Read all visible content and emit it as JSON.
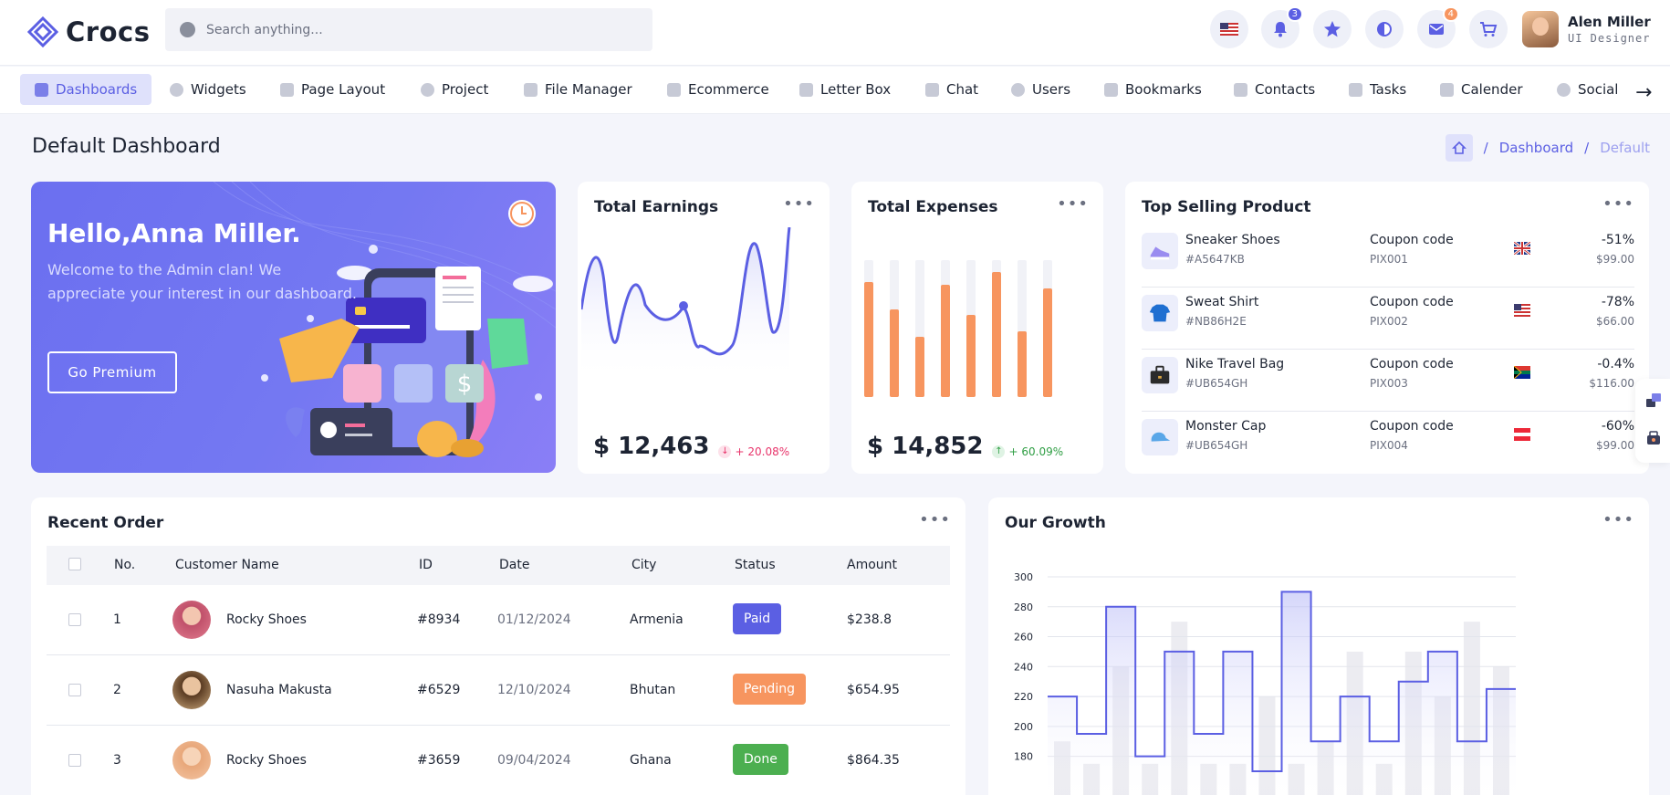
{
  "app": {
    "name": "Crocs"
  },
  "search": {
    "placeholder": "Search anything..."
  },
  "header": {
    "notifications_count": "3",
    "messages_count": "4",
    "user": {
      "name": "Alen Miller",
      "role": "UI Designer"
    }
  },
  "nav": {
    "items": [
      {
        "label": "Dashboards",
        "icon": "home-icon"
      },
      {
        "label": "Widgets",
        "icon": "pie-icon"
      },
      {
        "label": "Page Layout",
        "icon": "layout-icon"
      },
      {
        "label": "Project",
        "icon": "info-icon"
      },
      {
        "label": "File Manager",
        "icon": "file-icon"
      },
      {
        "label": "Ecommerce",
        "icon": "bag-icon"
      },
      {
        "label": "Letter Box",
        "icon": "mail-icon"
      },
      {
        "label": "Chat",
        "icon": "chat-icon"
      },
      {
        "label": "Users",
        "icon": "user-icon"
      },
      {
        "label": "Bookmarks",
        "icon": "bookmark-icon"
      },
      {
        "label": "Contacts",
        "icon": "phone-icon"
      },
      {
        "label": "Tasks",
        "icon": "check-icon"
      },
      {
        "label": "Calender",
        "icon": "calendar-icon"
      },
      {
        "label": "Social",
        "icon": "social-icon"
      }
    ]
  },
  "page": {
    "title": "Default Dashboard",
    "breadcrumb": [
      "Dashboard",
      "Default"
    ]
  },
  "hero": {
    "title": "Hello,Anna Miller.",
    "subtitle": "Welcome to the Admin clan! We appreciate your interest in our dashboard.",
    "button": "Go Premium"
  },
  "earnings": {
    "title": "Total Earnings",
    "amount": "$ 12,463",
    "trend": "+ 20.08%",
    "trend_direction": "down",
    "trend_color": "#e8336a"
  },
  "expenses": {
    "title": "Total Expenses",
    "amount": "$ 14,852",
    "trend": "+ 60.09%",
    "trend_direction": "up",
    "trend_color": "#2f9e44",
    "bars": [
      0.84,
      0.64,
      0.44,
      0.82,
      0.6,
      0.91,
      0.48,
      0.79
    ]
  },
  "top_selling": {
    "title": "Top Selling Product",
    "products": [
      {
        "name": "Sneaker Shoes",
        "code": "#A5647KB",
        "coupon_label": "Coupon code",
        "coupon": "PIX001",
        "flag": "uk",
        "pct": "-51%",
        "price": "$99.00"
      },
      {
        "name": "Sweat Shirt",
        "code": "#NB86H2E",
        "coupon_label": "Coupon code",
        "coupon": "PIX002",
        "flag": "us",
        "pct": "-78%",
        "price": "$66.00"
      },
      {
        "name": "Nike Travel Bag",
        "code": "#UB654GH",
        "coupon_label": "Coupon code",
        "coupon": "PIX003",
        "flag": "za",
        "pct": "-0.4%",
        "price": "$116.00"
      },
      {
        "name": "Monster Cap",
        "code": "#UB654GH",
        "coupon_label": "Coupon code",
        "coupon": "PIX004",
        "flag": "at",
        "pct": "-60%",
        "price": "$99.00"
      }
    ]
  },
  "recent_order": {
    "title": "Recent Order",
    "columns": [
      "No.",
      "Customer Name",
      "ID",
      "Date",
      "City",
      "Status",
      "Amount"
    ],
    "rows": [
      {
        "no": "1",
        "name": "Rocky Shoes",
        "id": "#8934",
        "date": "01/12/2024",
        "city": "Armenia",
        "status": "Paid",
        "status_color": "#5b5fe3",
        "amount": "$238.8"
      },
      {
        "no": "2",
        "name": "Nasuha Makusta",
        "id": "#6529",
        "date": "12/10/2024",
        "city": "Bhutan",
        "status": "Pending",
        "status_color": "#f7955f",
        "amount": "$654.95"
      },
      {
        "no": "3",
        "name": "Rocky Shoes",
        "id": "#3659",
        "date": "09/04/2024",
        "city": "Ghana",
        "status": "Done",
        "status_color": "#4caf50",
        "amount": "$864.35"
      }
    ]
  },
  "growth": {
    "title": "Our Growth"
  },
  "chart_data": {
    "type": "line",
    "y_ticks": [
      180,
      200,
      220,
      240,
      260,
      280,
      300
    ],
    "ylim": [
      170,
      300
    ],
    "grid": true,
    "series": [
      {
        "values": [
          220,
          195,
          280,
          180,
          250,
          195,
          250,
          170,
          290,
          190,
          220,
          190,
          230,
          250,
          190,
          225
        ]
      }
    ],
    "background_bars": [
      190,
      175,
      240,
      175,
      270,
      175,
      175,
      220,
      175,
      190,
      250,
      175,
      250,
      220,
      270,
      240
    ]
  },
  "colors": {
    "accent": "#5b5fe3",
    "accent_light": "#dfe1fb",
    "expense_bar": "#f7955f",
    "badge_blue": "#5b5fe3",
    "badge_orange": "#f7955f"
  }
}
